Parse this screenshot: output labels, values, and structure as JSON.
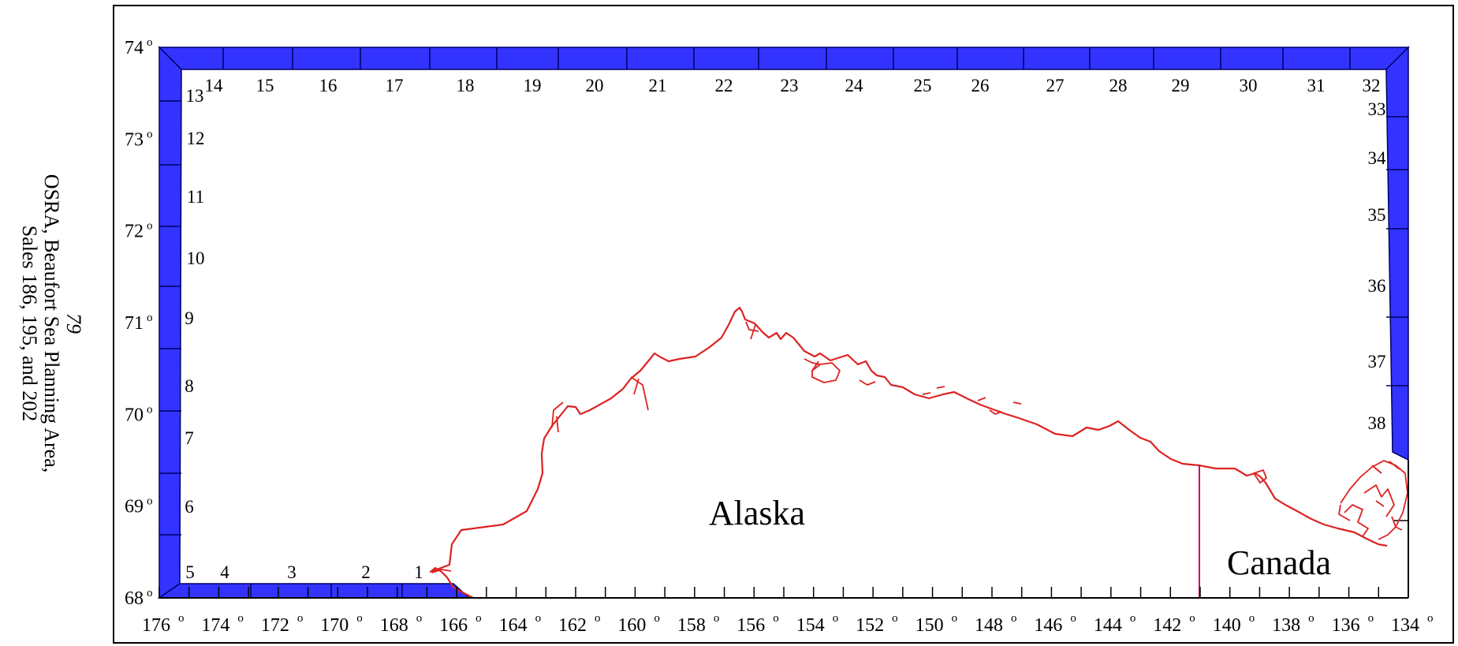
{
  "side_caption": {
    "page_number": "79",
    "line1": "OSRA, Beaufort Sea Planning Area,",
    "line2": "Sales 186, 195, and 202"
  },
  "map": {
    "lat_labels": [
      {
        "deg": 74,
        "text": "74"
      },
      {
        "deg": 73,
        "text": "73"
      },
      {
        "deg": 72,
        "text": "72"
      },
      {
        "deg": 71,
        "text": "71"
      },
      {
        "deg": 70,
        "text": "70"
      },
      {
        "deg": 69,
        "text": "69"
      },
      {
        "deg": 68,
        "text": "68"
      }
    ],
    "lon_labels": [
      "176",
      "174",
      "172",
      "170",
      "168",
      "166",
      "164",
      "162",
      "160",
      "158",
      "156",
      "154",
      "152",
      "150",
      "148",
      "146",
      "144",
      "142",
      "140",
      "138",
      "136",
      "134"
    ],
    "degree_symbol": "o",
    "place_labels": {
      "alaska": "Alaska",
      "canada": "Canada"
    },
    "segment_numbers": [
      "1",
      "2",
      "3",
      "4",
      "5",
      "6",
      "7",
      "8",
      "9",
      "10",
      "11",
      "12",
      "13",
      "14",
      "15",
      "16",
      "17",
      "18",
      "19",
      "20",
      "21",
      "22",
      "23",
      "24",
      "25",
      "26",
      "27",
      "28",
      "29",
      "30",
      "31",
      "32",
      "33",
      "34",
      "35",
      "36",
      "37",
      "38"
    ],
    "colors": {
      "boundary": "#3333ff",
      "boundary_edge": "#000066",
      "coastline": "#dd2222",
      "border": "#cc0066"
    }
  }
}
